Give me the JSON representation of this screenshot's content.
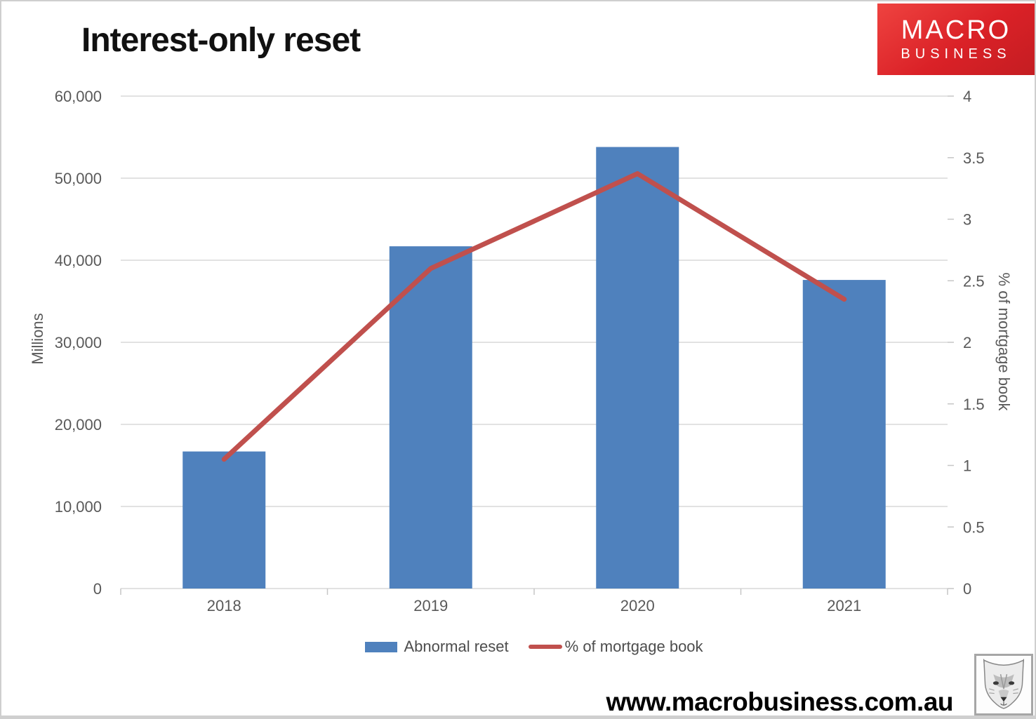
{
  "chart_data": {
    "type": "combo-bar-line",
    "title": "Interest-only reset",
    "categories": [
      "2018",
      "2019",
      "2020",
      "2021"
    ],
    "series": [
      {
        "name": "Abnormal reset",
        "type": "bar",
        "axis": "left",
        "color": "#4f81bd",
        "values": [
          16700,
          41700,
          53800,
          37600
        ]
      },
      {
        "name": "% of mortgage book",
        "type": "line",
        "axis": "right",
        "color": "#c0504d",
        "values": [
          1.05,
          2.6,
          3.37,
          2.35
        ]
      }
    ],
    "left_axis": {
      "label": "Millions",
      "min": 0,
      "max": 60000,
      "step": 10000,
      "tick_labels": [
        "0",
        "10,000",
        "20,000",
        "30,000",
        "40,000",
        "50,000",
        "60,000"
      ]
    },
    "right_axis": {
      "label": "% of mortgage book",
      "min": 0,
      "max": 4,
      "step": 0.5,
      "tick_labels": [
        "0",
        "0.5",
        "1",
        "1.5",
        "2",
        "2.5",
        "3",
        "3.5",
        "4"
      ]
    },
    "legend_position": "bottom",
    "grid": true
  },
  "brand": {
    "line1": "MACRO",
    "line2": "BUSINESS"
  },
  "footer": {
    "website": "www.macrobusiness.com.au"
  },
  "icons": {
    "fox": "fox-sketch-icon"
  },
  "colors": {
    "bar": "#4f81bd",
    "line": "#c0504d",
    "brand_red": "#da2127",
    "axis_text": "#595959",
    "gridline": "#d9d9d9"
  }
}
